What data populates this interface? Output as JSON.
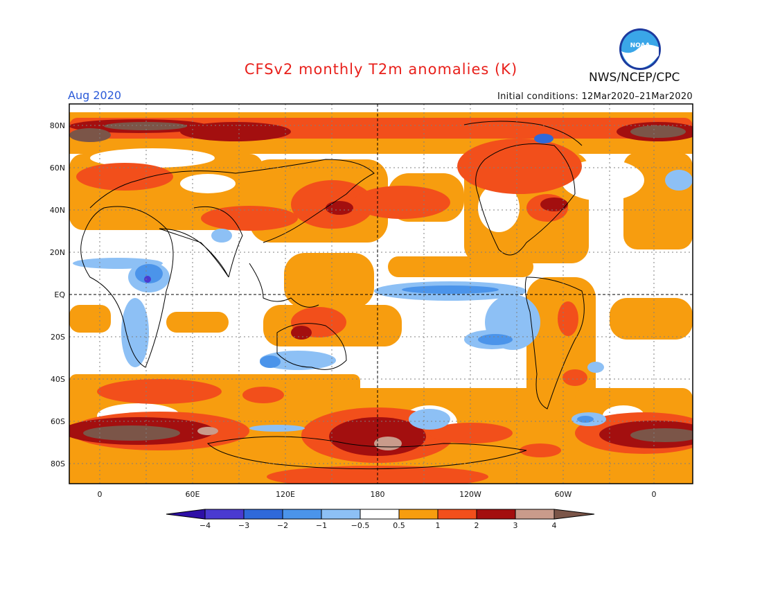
{
  "title": "CFSv2 monthly T2m anomalies (K)",
  "month_label": "Aug 2020",
  "initial_conditions": "Initial conditions: 12Mar2020–21Mar2020",
  "agency": "NWS/NCEP/CPC",
  "logo_text": "NOAA",
  "map": {
    "lat_labels": [
      "80N",
      "60N",
      "40N",
      "20N",
      "EQ",
      "20S",
      "40S",
      "60S",
      "80S"
    ],
    "lon_labels": [
      "0",
      "60E",
      "120E",
      "180",
      "120W",
      "60W",
      "0"
    ]
  },
  "colorbar": {
    "tick_labels": [
      "−4",
      "−3",
      "−2",
      "−1",
      "−0.5",
      "0.5",
      "1",
      "2",
      "3",
      "4"
    ],
    "colors": [
      "#2e0fa6",
      "#4a3ad0",
      "#2f69d9",
      "#4b94ea",
      "#8dc0f5",
      "#ffffff",
      "#f79d0f",
      "#f24f1b",
      "#a30f0f",
      "#c99b8b",
      "#7b5548"
    ]
  }
}
